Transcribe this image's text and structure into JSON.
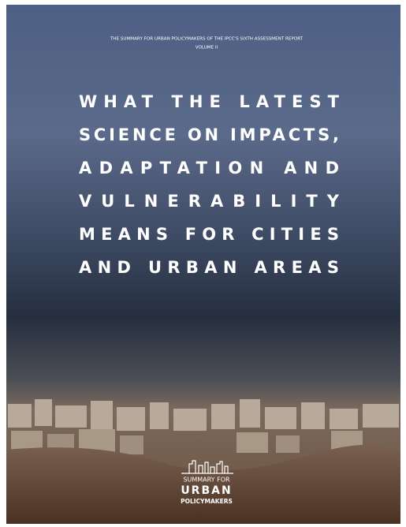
{
  "header": {
    "subtitle": "THE SUMMARY FOR URBAN POLICYMAKERS OF THE IPCC'S SIXTH ASSESSMENT REPORT",
    "volume": "VOLUME II"
  },
  "title": {
    "lines": [
      "WHAT THE LATEST",
      "SCIENCE ON IMPACTS,",
      "ADAPTATION AND",
      "VULNERABILITY",
      "MEANS FOR CITIES",
      "AND URBAN AREAS"
    ]
  },
  "logo": {
    "line1": "SUMMARY FOR",
    "line2": "URBAN",
    "line3": "POLICYMAKERS"
  }
}
